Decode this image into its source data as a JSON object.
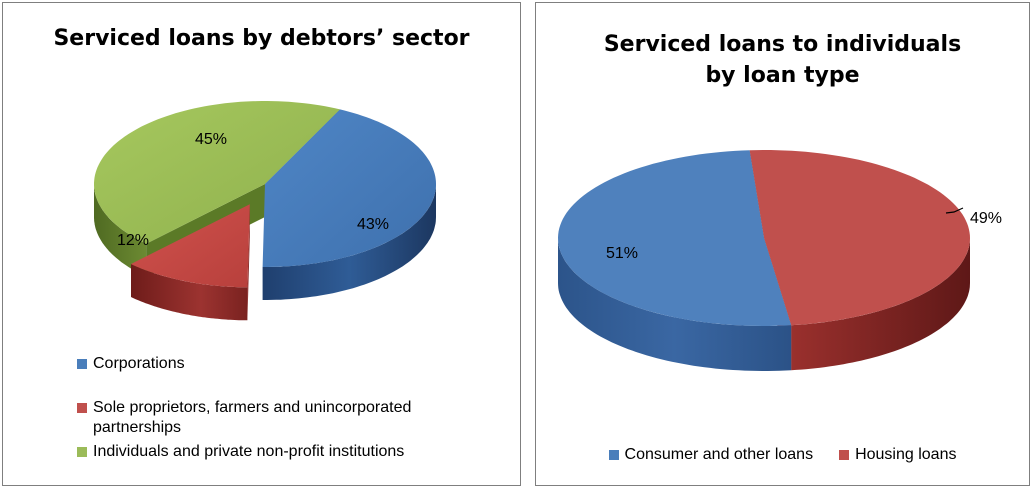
{
  "colors": {
    "corporations": "#4a7ebb",
    "sole_proprietors": "#c0504d",
    "individuals": "#9bbb59",
    "consumer": "#4a7ebb",
    "housing": "#c0504d"
  },
  "chart_data": [
    {
      "type": "pie",
      "title": "Serviced loans by debtors’ sector",
      "labels": [
        "Corporations",
        "Sole proprietors, farmers and unincorporated partnerships",
        "Individuals and private non-profit institutions"
      ],
      "values": [
        43,
        12,
        45
      ],
      "data_labels": [
        "43%",
        "12%",
        "45%"
      ],
      "legend_position": "bottom",
      "exploded": "Sole proprietors, farmers and unincorporated partnerships",
      "style": "3d"
    },
    {
      "type": "pie",
      "title": "Serviced loans to individuals by loan type",
      "title_lines": [
        "Serviced loans to individuals",
        "by loan type"
      ],
      "labels": [
        "Consumer and other loans",
        "Housing loans"
      ],
      "values": [
        51,
        49
      ],
      "data_labels": [
        "51%",
        "49%"
      ],
      "legend_position": "bottom",
      "style": "3d"
    }
  ]
}
